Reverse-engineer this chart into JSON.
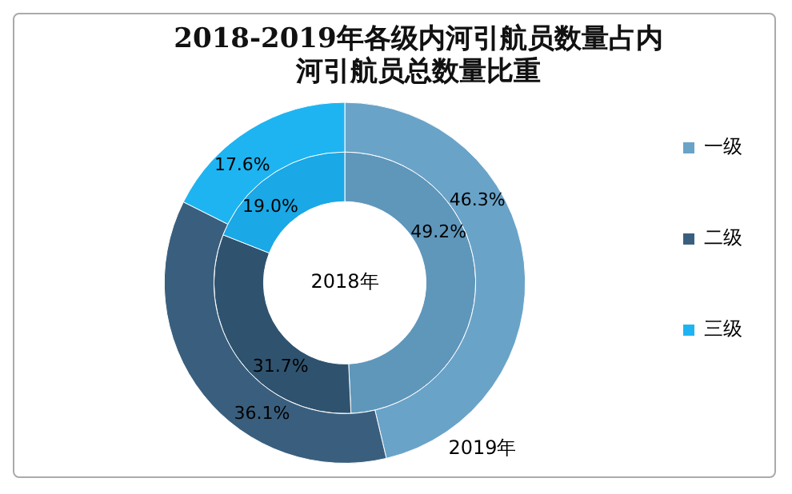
{
  "chart_data": {
    "type": "donut",
    "title": "2018-2019年各级内河引航员数量占内河引航员总数量比重",
    "categories": [
      "一级",
      "二级",
      "三级"
    ],
    "series": [
      {
        "name": "2019年",
        "values": [
          46.3,
          36.1,
          17.6
        ],
        "colors": [
          "#6aa3c8",
          "#3a5f7e",
          "#1eb4f2"
        ],
        "value_labels": [
          "46.3%",
          "36.1%",
          "17.6%"
        ]
      },
      {
        "name": "2018年",
        "values": [
          49.2,
          31.7,
          19.0
        ],
        "colors": [
          "#5f97bb",
          "#2f536f",
          "#1aa8e6"
        ],
        "value_labels": [
          "49.2%",
          "31.7%",
          "19.0%"
        ]
      }
    ],
    "legend": "right"
  }
}
